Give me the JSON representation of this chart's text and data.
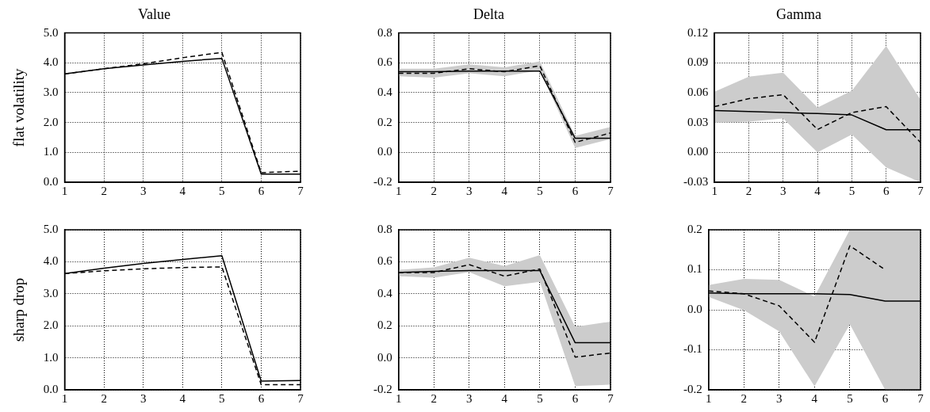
{
  "chart_data": [
    {
      "type": "line",
      "title": "Value",
      "ylabel": "flat volatility",
      "x": [
        1,
        2,
        3,
        4,
        5,
        6,
        7
      ],
      "xlim": [
        1,
        7
      ],
      "xticks": [
        1,
        2,
        3,
        4,
        5,
        6,
        7
      ],
      "ylim": [
        0,
        5
      ],
      "yticks": [
        {
          "value": 0,
          "label": "0.0"
        },
        {
          "value": 1,
          "label": "1.0"
        },
        {
          "value": 2,
          "label": "2.0"
        },
        {
          "value": 3,
          "label": "3.0"
        },
        {
          "value": 4,
          "label": "4.0"
        },
        {
          "value": 5,
          "label": "5.0"
        }
      ],
      "grid": true,
      "series": [
        {
          "color": "#000000",
          "line_style": "solid",
          "values": [
            3.63,
            3.8,
            3.93,
            4.05,
            4.15,
            0.27,
            0.27
          ]
        },
        {
          "color": "#000000",
          "line_style": "dashed",
          "values": [
            3.63,
            3.8,
            3.97,
            4.17,
            4.35,
            0.32,
            0.37
          ]
        }
      ]
    },
    {
      "type": "line",
      "title": "Delta",
      "x": [
        1,
        2,
        3,
        4,
        5,
        6,
        7
      ],
      "xlim": [
        1,
        7
      ],
      "xticks": [
        1,
        2,
        3,
        4,
        5,
        6,
        7
      ],
      "ylim": [
        -0.2,
        0.8
      ],
      "yticks": [
        -0.2,
        {
          "value": 0,
          "label": "0.0"
        },
        0.2,
        0.4,
        0.6,
        0.8
      ],
      "grid": true,
      "series": [
        {
          "color": "#000000",
          "line_style": "solid",
          "values": [
            0.54,
            0.54,
            0.545,
            0.545,
            0.545,
            0.094,
            0.094
          ]
        },
        {
          "color": "#000000",
          "line_style": "dashed",
          "values": [
            0.53,
            0.53,
            0.56,
            0.54,
            0.58,
            0.067,
            0.13
          ],
          "lower": [
            0.51,
            0.5,
            0.53,
            0.51,
            0.55,
            0.03,
            0.09
          ],
          "upper": [
            0.56,
            0.56,
            0.59,
            0.57,
            0.61,
            0.11,
            0.17
          ]
        }
      ]
    },
    {
      "type": "line",
      "title": "Gamma",
      "x": [
        1,
        2,
        3,
        4,
        5,
        6,
        7
      ],
      "xlim": [
        1,
        7
      ],
      "xticks": [
        1,
        2,
        3,
        4,
        5,
        6,
        7
      ],
      "ylim": [
        -0.03,
        0.12
      ],
      "yticks": [
        -0.03,
        {
          "value": 0,
          "label": "0.00"
        },
        0.03,
        0.06,
        0.09,
        0.12
      ],
      "grid": true,
      "series": [
        {
          "color": "#000000",
          "line_style": "solid",
          "values": [
            0.042,
            0.041,
            0.04,
            0.039,
            0.0376,
            0.0227,
            0.0227
          ]
        },
        {
          "color": "#000000",
          "line_style": "dashed",
          "values": [
            0.046,
            0.054,
            0.058,
            0.023,
            0.04,
            0.046,
            0.01
          ],
          "lower": [
            0.03,
            0.031,
            0.034,
            0.0,
            0.018,
            -0.015,
            -0.03
          ],
          "upper": [
            0.061,
            0.076,
            0.08,
            0.045,
            0.062,
            0.107,
            0.053
          ]
        }
      ]
    },
    {
      "type": "line",
      "ylabel": "sharp drop",
      "x": [
        1,
        2,
        3,
        4,
        5,
        6,
        7
      ],
      "xlim": [
        1,
        7
      ],
      "xticks": [
        1,
        2,
        3,
        4,
        5,
        6,
        7
      ],
      "ylim": [
        0,
        5
      ],
      "yticks": [
        {
          "value": 0,
          "label": "0.0"
        },
        {
          "value": 1,
          "label": "1.0"
        },
        {
          "value": 2,
          "label": "2.0"
        },
        {
          "value": 3,
          "label": "3.0"
        },
        {
          "value": 4,
          "label": "4.0"
        },
        {
          "value": 5,
          "label": "5.0"
        }
      ],
      "grid": true,
      "series": [
        {
          "color": "#000000",
          "line_style": "solid",
          "values": [
            3.63,
            3.8,
            3.95,
            4.07,
            4.19,
            0.27,
            0.29
          ]
        },
        {
          "color": "#000000",
          "line_style": "dashed",
          "values": [
            3.63,
            3.72,
            3.78,
            3.82,
            3.84,
            0.16,
            0.16
          ]
        }
      ]
    },
    {
      "type": "line",
      "x": [
        1,
        2,
        3,
        4,
        5,
        6,
        7
      ],
      "xlim": [
        1,
        7
      ],
      "xticks": [
        1,
        2,
        3,
        4,
        5,
        6,
        7
      ],
      "ylim": [
        -0.2,
        0.8
      ],
      "yticks": [
        -0.2,
        {
          "value": 0,
          "label": "0.0"
        },
        0.2,
        0.4,
        0.6,
        0.8
      ],
      "grid": true,
      "series": [
        {
          "color": "#000000",
          "line_style": "solid",
          "values": [
            0.533,
            0.54,
            0.545,
            0.545,
            0.545,
            0.094,
            0.094
          ]
        },
        {
          "color": "#000000",
          "line_style": "dashed",
          "values": [
            0.533,
            0.533,
            0.582,
            0.51,
            0.555,
            0.004,
            0.03
          ],
          "lower": [
            0.51,
            0.5,
            0.535,
            0.447,
            0.474,
            -0.177,
            -0.168
          ],
          "upper": [
            0.55,
            0.565,
            0.626,
            0.573,
            0.642,
            0.193,
            0.226
          ]
        }
      ]
    },
    {
      "type": "line",
      "x": [
        1,
        2,
        3,
        4,
        5,
        6,
        7
      ],
      "xlim": [
        1,
        7
      ],
      "xticks": [
        1,
        2,
        3,
        4,
        5,
        6,
        7
      ],
      "ylim": [
        -0.2,
        0.2
      ],
      "yticks": [
        -0.2,
        -0.1,
        {
          "value": 0,
          "label": "0.0"
        },
        0.1,
        0.2
      ],
      "grid": true,
      "series": [
        {
          "color": "#000000",
          "line_style": "solid",
          "values": [
            0.042,
            0.04,
            0.04,
            0.04,
            0.038,
            0.022,
            0.022
          ]
        },
        {
          "color": "#000000",
          "line_style": "dashed",
          "values": [
            0.047,
            0.04,
            0.01,
            -0.081,
            0.16,
            0.1,
            null
          ],
          "lower": [
            0.032,
            -0.001,
            -0.054,
            -0.191,
            -0.036,
            -0.2,
            -0.2
          ],
          "upper": [
            0.062,
            0.077,
            0.075,
            0.033,
            0.2,
            0.2,
            0.2
          ]
        }
      ]
    }
  ]
}
